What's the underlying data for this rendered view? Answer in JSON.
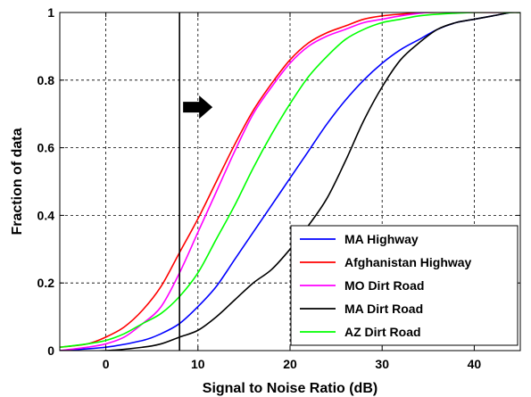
{
  "chart_data": {
    "type": "line",
    "xlabel": "Signal to Noise Ratio (dB)",
    "ylabel": "Fraction of data",
    "xlim": [
      -5,
      45
    ],
    "ylim": [
      0,
      1
    ],
    "x_ticks": [
      0,
      10,
      20,
      30,
      40
    ],
    "y_ticks": [
      0,
      0.2,
      0.4,
      0.6,
      0.8,
      1
    ],
    "y_tick_labels": [
      "0",
      "0.2",
      "0.4",
      "0.6",
      "0.8",
      "1"
    ],
    "grid": true,
    "legend_position": "bottom-right",
    "threshold_line_x": 8,
    "arrow_direction": "right",
    "series": [
      {
        "name": "MA Highway",
        "color": "#0000ff",
        "x": [
          -5,
          0,
          4,
          6,
          8,
          10,
          12,
          14,
          16,
          18,
          20,
          22,
          24,
          26,
          28,
          30,
          32,
          34,
          36,
          38,
          40,
          42,
          44,
          45
        ],
        "y": [
          0.0,
          0.01,
          0.03,
          0.05,
          0.08,
          0.13,
          0.19,
          0.27,
          0.35,
          0.43,
          0.51,
          0.59,
          0.67,
          0.74,
          0.8,
          0.85,
          0.89,
          0.92,
          0.95,
          0.97,
          0.98,
          0.99,
          1.0,
          1.0
        ]
      },
      {
        "name": "Afghanistan Highway",
        "color": "#ff0000",
        "x": [
          -5,
          -2,
          0,
          2,
          4,
          6,
          8,
          10,
          12,
          14,
          16,
          18,
          20,
          22,
          24,
          26,
          28,
          30,
          32,
          35,
          38,
          40,
          45
        ],
        "y": [
          0.01,
          0.02,
          0.04,
          0.07,
          0.12,
          0.19,
          0.29,
          0.39,
          0.5,
          0.61,
          0.71,
          0.79,
          0.86,
          0.91,
          0.94,
          0.96,
          0.98,
          0.99,
          0.995,
          1.0,
          1.0,
          1.0,
          1.0
        ]
      },
      {
        "name": "MO Dirt Road",
        "color": "#ff00ff",
        "x": [
          -5,
          -2,
          0,
          2,
          4,
          6,
          8,
          10,
          12,
          14,
          16,
          18,
          20,
          22,
          24,
          26,
          28,
          30,
          32,
          35,
          38,
          40,
          45
        ],
        "y": [
          0.0,
          0.01,
          0.02,
          0.04,
          0.08,
          0.13,
          0.23,
          0.35,
          0.47,
          0.59,
          0.7,
          0.78,
          0.85,
          0.9,
          0.93,
          0.95,
          0.97,
          0.98,
          0.99,
          1.0,
          1.0,
          1.0,
          1.0
        ]
      },
      {
        "name": "MA Dirt Road",
        "color": "#000000",
        "x": [
          -5,
          0,
          4,
          6,
          8,
          10,
          12,
          14,
          16,
          18,
          20,
          22,
          24,
          26,
          28,
          30,
          32,
          34,
          36,
          38,
          40,
          42,
          44,
          45
        ],
        "y": [
          0.0,
          0.0,
          0.01,
          0.02,
          0.04,
          0.06,
          0.1,
          0.15,
          0.2,
          0.24,
          0.3,
          0.37,
          0.45,
          0.56,
          0.68,
          0.78,
          0.86,
          0.91,
          0.95,
          0.97,
          0.98,
          0.99,
          1.0,
          1.0
        ]
      },
      {
        "name": "AZ Dirt Road",
        "color": "#00ff00",
        "x": [
          -5,
          -2,
          0,
          2,
          4,
          6,
          8,
          10,
          12,
          14,
          16,
          18,
          20,
          22,
          24,
          26,
          28,
          30,
          32,
          34,
          36,
          40,
          45
        ],
        "y": [
          0.01,
          0.02,
          0.03,
          0.05,
          0.08,
          0.11,
          0.16,
          0.23,
          0.33,
          0.43,
          0.54,
          0.64,
          0.73,
          0.81,
          0.87,
          0.92,
          0.95,
          0.97,
          0.98,
          0.99,
          0.995,
          1.0,
          1.0
        ]
      }
    ]
  }
}
